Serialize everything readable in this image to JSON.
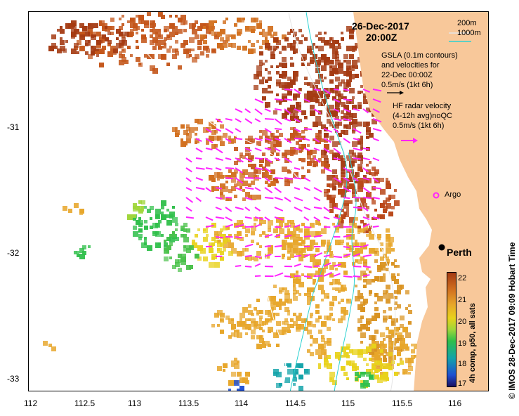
{
  "map": {
    "date": "26-Dec-2017",
    "time": "20:00Z",
    "depth_legend": [
      "200m",
      "1000m"
    ],
    "colors": {
      "land": "#f8c89a",
      "depth_200": "#e6e6e6",
      "depth_1000": "#2ad1d1",
      "radar_arrow": "#ff22ff",
      "sst_high": "#a43a12",
      "sst_mid": "#e7a62a",
      "sst_low": "#2fbf4a"
    },
    "gsla_text": [
      "GSLA (0.1m contours)",
      "and velocities for",
      "22-Dec 00:00Z",
      "0.5m/s (1kt 6h)"
    ],
    "radar_text": [
      "HF radar velocity",
      "(4-12h avg)noQC",
      "0.5m/s (1kt 6h)"
    ],
    "argo_label": "Argo",
    "city_label": "Perth",
    "x_ticks": [
      "112",
      "112.5",
      "113",
      "113.5",
      "114",
      "114.5",
      "115",
      "115.5",
      "116"
    ],
    "y_ticks": [
      "-31",
      "-32",
      "-33"
    ],
    "colorbar": {
      "title": "4h comp, p50, all sats",
      "ticks": [
        "22",
        "21",
        "20",
        "19",
        "18",
        "17"
      ]
    },
    "copyright": "© IMOS 28-Dec-2017 09:09 Hobart Time"
  }
}
